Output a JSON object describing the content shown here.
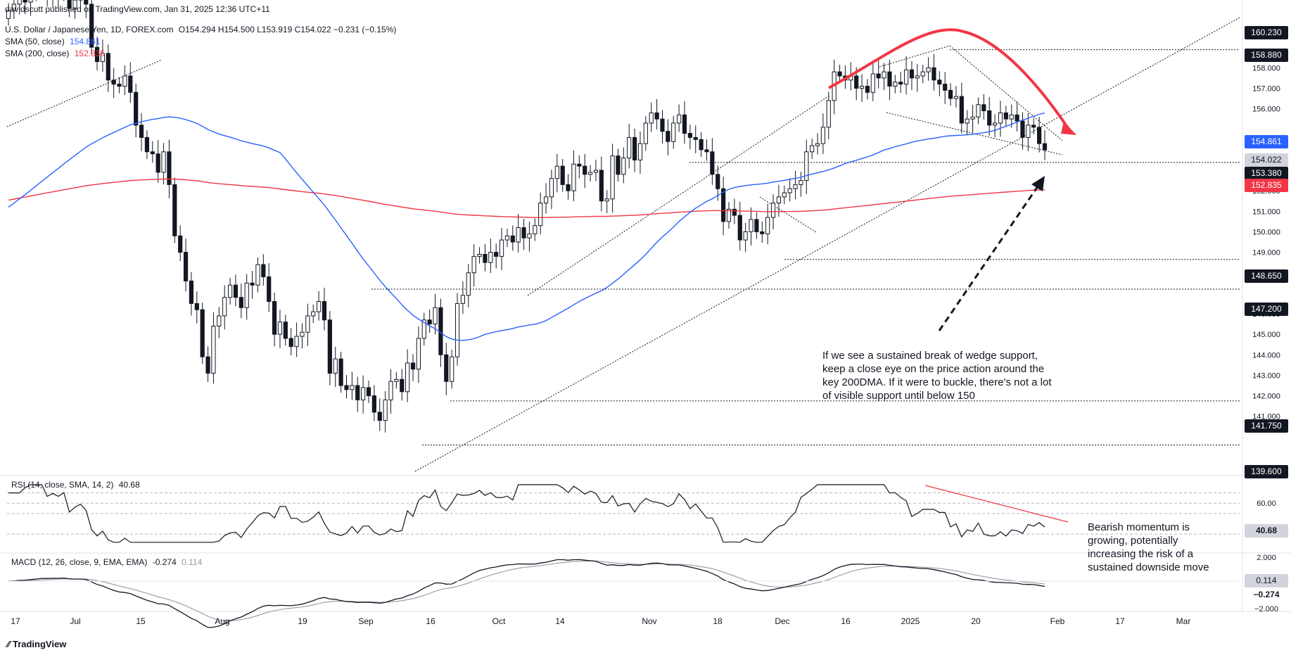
{
  "header": {
    "published": "davidscutt published on TradingView.com, Jan 31, 2025 12:36 UTC+11",
    "symbol": "U.S. Dollar / Japanese Yen, 1D, FOREX.com",
    "ohlc": "O154.294 H154.500 L153.919 C154.022 −0.231 (−0.15%)",
    "sma50": "SMA (50, close)",
    "sma50_value": "154.861",
    "sma200": "SMA (200, close)",
    "sma200_value": "152.835"
  },
  "chart_data": {
    "type": "candlestick",
    "x_labels": [
      "17",
      "Jul",
      "15",
      "Aug",
      "19",
      "Sep",
      "16",
      "Oct",
      "14",
      "Nov",
      "18",
      "Dec",
      "16",
      "2025",
      "20",
      "Feb",
      "17",
      "Mar"
    ],
    "y_ticks": [
      "141.000",
      "142.000",
      "143.000",
      "144.000",
      "145.000",
      "146.000",
      "148.000",
      "149.000",
      "150.000",
      "151.000",
      "152.000",
      "156.000",
      "157.000",
      "158.000"
    ],
    "price_tags": [
      {
        "label": "160.230",
        "bg": "#131722",
        "fg": "#ffffff"
      },
      {
        "label": "158.880",
        "bg": "#131722",
        "fg": "#ffffff"
      },
      {
        "label": "154.861",
        "bg": "#2962ff",
        "fg": "#ffffff"
      },
      {
        "label": "154.022",
        "bg": "#d1d4dc",
        "fg": "#131722"
      },
      {
        "label": "153.380",
        "bg": "#131722",
        "fg": "#ffffff"
      },
      {
        "label": "152.835",
        "bg": "#f23645",
        "fg": "#ffffff"
      },
      {
        "label": "148.650",
        "bg": "#131722",
        "fg": "#ffffff"
      },
      {
        "label": "147.200",
        "bg": "#131722",
        "fg": "#ffffff"
      },
      {
        "label": "141.750",
        "bg": "#131722",
        "fg": "#ffffff"
      },
      {
        "label": "139.600",
        "bg": "#131722",
        "fg": "#ffffff"
      }
    ],
    "horizontal_levels": [
      158.88,
      153.38,
      148.65,
      147.2,
      141.75,
      139.6
    ],
    "sma50_color": "#2962ff",
    "sma200_color": "#f23645",
    "candle_up_color": "#ffffff",
    "candle_down_color": "#131722",
    "closes": [
      160.8,
      161.1,
      161.4,
      161.2,
      161.6,
      161.8,
      162.0,
      161.5,
      161.7,
      161.6,
      161.9,
      160.9,
      161.3,
      161.6,
      161.1,
      159.0,
      158.3,
      158.7,
      157.4,
      157.2,
      157.1,
      157.6,
      156.8,
      155.2,
      154.6,
      153.9,
      153.8,
      152.9,
      153.9,
      152.3,
      149.8,
      149.0,
      147.6,
      146.5,
      146.2,
      143.9,
      143.1,
      145.4,
      145.9,
      146.8,
      147.4,
      146.8,
      146.3,
      147.5,
      147.4,
      148.4,
      147.8,
      146.6,
      145.0,
      145.6,
      144.8,
      144.4,
      144.9,
      145.1,
      145.9,
      146.1,
      146.6,
      145.7,
      143.1,
      143.8,
      142.5,
      142.3,
      142.5,
      141.8,
      142.4,
      142.0,
      141.2,
      140.8,
      141.8,
      142.7,
      142.8,
      142.2,
      143.6,
      143.3,
      144.8,
      145.7,
      145.5,
      146.3,
      144.0,
      142.7,
      143.9,
      146.5,
      146.9,
      148.0,
      148.8,
      148.9,
      148.5,
      149.0,
      148.8,
      149.6,
      149.8,
      149.5,
      150.2,
      149.7,
      149.9,
      150.3,
      151.4,
      151.7,
      152.6,
      153.2,
      152.3,
      152.0,
      153.3,
      153.2,
      152.8,
      152.9,
      153.0,
      151.5,
      151.6,
      153.7,
      152.8,
      153.6,
      154.6,
      153.5,
      154.3,
      155.3,
      155.8,
      155.5,
      154.9,
      154.4,
      155.3,
      155.7,
      154.8,
      154.6,
      154.5,
      154.0,
      153.9,
      152.8,
      152.1,
      150.5,
      151.1,
      150.8,
      149.6,
      150.0,
      150.6,
      150.0,
      149.9,
      150.7,
      151.4,
      151.7,
      151.9,
      152.1,
      152.3,
      152.5,
      153.9,
      154.2,
      154.3,
      155.1,
      156.4,
      157.8,
      157.6,
      157.4,
      157.6,
      157.0,
      157.1,
      156.8,
      157.7,
      157.5,
      157.8,
      157.1,
      157.3,
      157.2,
      157.9,
      157.5,
      157.6,
      157.8,
      158.0,
      157.4,
      157.2,
      156.9,
      156.5,
      156.6,
      155.3,
      155.5,
      155.6,
      156.2,
      155.9,
      155.2,
      155.3,
      155.8,
      155.5,
      155.7,
      155.4,
      154.6,
      155.2,
      155.1,
      154.3,
      154.0
    ]
  },
  "annotations": {
    "main": "If we see a sustained break of wedge support, keep a close eye on the price action around the key 200DMA. If it were to buckle, there's not a lot of visible support until below 150",
    "rsi_note": "Bearish momentum is growing, potentially increasing the risk of a sustained downside move"
  },
  "rsi": {
    "label": "RSI (14, close, SMA, 14, 2)",
    "value": "40.68",
    "ticks": [
      "60.00"
    ],
    "tag_bg": "#d1d4dc"
  },
  "macd": {
    "label": "MACD (12, 26, close, 9, EMA, EMA)",
    "value": "-0.274",
    "signal": "0.114",
    "ticks": [
      "2.000",
      "−2.000"
    ],
    "tag_macd": "−0.274",
    "tag_signal": "0.114"
  },
  "footer": {
    "brand": "TradingView"
  }
}
